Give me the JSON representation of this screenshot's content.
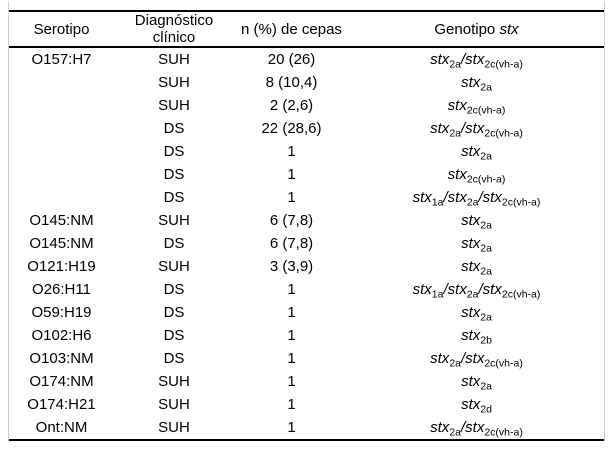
{
  "table": {
    "rule_color": "#000000",
    "frame_edge_color": "#cfcfcf",
    "headers": {
      "serotipo": "Serotipo",
      "diagnostico": "Diagnóstico clínico",
      "n_cepas": "n (%) de cepas",
      "genotipo_prefix": "Genotipo ",
      "genotipo_italic": "stx"
    },
    "rows": [
      {
        "serotipo": "O157:H7",
        "diagnostico": "SUH",
        "n": "20 (26)",
        "genotipo": "stx_2a_/stx_2c(vh-a)_"
      },
      {
        "serotipo": "",
        "diagnostico": "SUH",
        "n": "8 (10,4)",
        "genotipo": "stx_2a_"
      },
      {
        "serotipo": "",
        "diagnostico": "SUH",
        "n": "2 (2,6)",
        "genotipo": "stx_2c(vh-a)_"
      },
      {
        "serotipo": "",
        "diagnostico": "DS",
        "n": "22 (28,6)",
        "genotipo": "stx_2a_/stx_2c(vh-a)_"
      },
      {
        "serotipo": "",
        "diagnostico": "DS",
        "n": "1",
        "genotipo": "stx_2a_"
      },
      {
        "serotipo": "",
        "diagnostico": "DS",
        "n": "1",
        "genotipo": "stx_2c(vh-a)_"
      },
      {
        "serotipo": "",
        "diagnostico": "DS",
        "n": "1",
        "genotipo": "stx_1a_/stx_2a_/stx_2c(vh-a)_"
      },
      {
        "serotipo": "O145:NM",
        "diagnostico": "SUH",
        "n": "6 (7,8)",
        "genotipo": "stx_2a_"
      },
      {
        "serotipo": "O145:NM",
        "diagnostico": "DS",
        "n": "6 (7,8)",
        "genotipo": "stx_2a_"
      },
      {
        "serotipo": "O121:H19",
        "diagnostico": "SUH",
        "n": "3 (3,9)",
        "genotipo": "stx_2a_"
      },
      {
        "serotipo": "O26:H11",
        "diagnostico": "DS",
        "n": "1",
        "genotipo": "stx_1a_/stx_2a_/stx_2c(vh-a)_"
      },
      {
        "serotipo": "O59:H19",
        "diagnostico": "DS",
        "n": "1",
        "genotipo": "stx_2a_"
      },
      {
        "serotipo": "O102:H6",
        "diagnostico": "DS",
        "n": "1",
        "genotipo": "stx_2b_"
      },
      {
        "serotipo": "O103:NM",
        "diagnostico": "DS",
        "n": "1",
        "genotipo": "stx_2a_/stx_2c(vh-a)_"
      },
      {
        "serotipo": "O174:NM",
        "diagnostico": "SUH",
        "n": "1",
        "genotipo": "stx_2a_"
      },
      {
        "serotipo": "O174:H21",
        "diagnostico": "SUH",
        "n": "1",
        "genotipo": "stx_2d_"
      },
      {
        "serotipo": "Ont:NM",
        "diagnostico": "SUH",
        "n": "1",
        "genotipo": "stx_2a_/stx_2c(vh-a)_"
      }
    ]
  }
}
